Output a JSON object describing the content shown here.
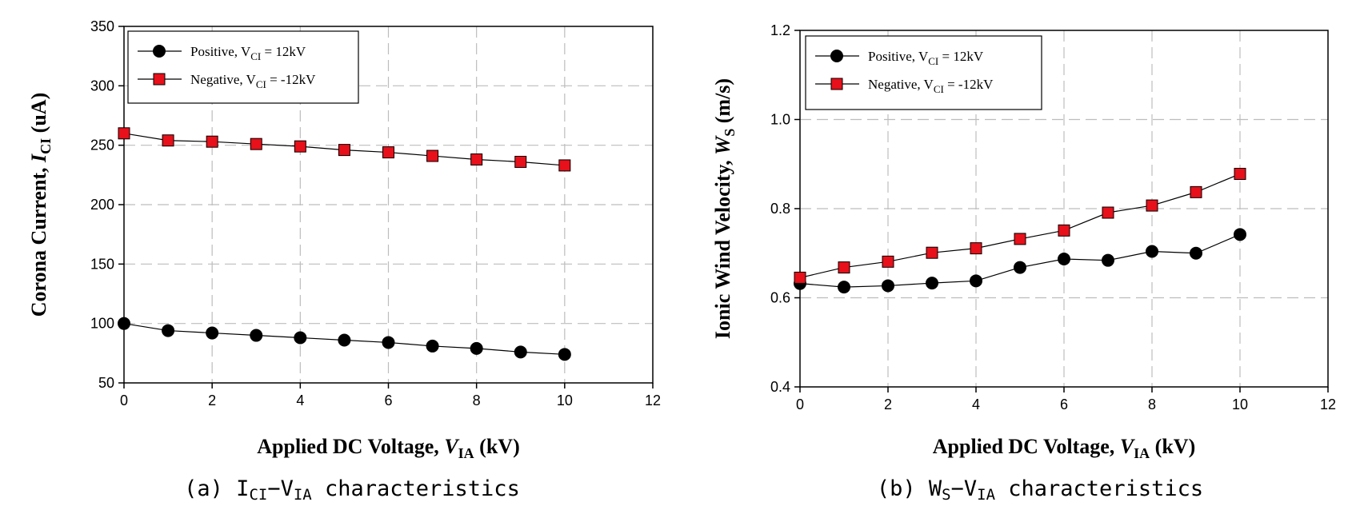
{
  "chart_data": [
    {
      "type": "line",
      "title": "",
      "xlabel": {
        "main": "Applied DC Voltage, ",
        "var": "V",
        "sub": "IA",
        "unit": " (kV)"
      },
      "ylabel": {
        "main": "Corona Current, ",
        "var": "I",
        "sub": "CI",
        "unit": " (uA)"
      },
      "xlim": [
        0,
        12
      ],
      "ylim": [
        50,
        350
      ],
      "xticks": [
        0,
        2,
        4,
        6,
        8,
        10,
        12
      ],
      "yticks": [
        50,
        100,
        150,
        200,
        250,
        300,
        350
      ],
      "grid": true,
      "legend_position": "top-left",
      "x": [
        0,
        1,
        2,
        3,
        4,
        5,
        6,
        7,
        8,
        9,
        10
      ],
      "series": [
        {
          "legend": {
            "pre": "Positive, V",
            "sub": "CI",
            "post": " = 12kV"
          },
          "marker": "circle",
          "color": "#000000",
          "values": [
            100,
            94,
            92,
            90,
            88,
            86,
            84,
            81,
            79,
            76,
            74
          ]
        },
        {
          "legend": {
            "pre": "Negative, V",
            "sub": "CI",
            "post": " = -12kV"
          },
          "marker": "square",
          "color": "#e8101a",
          "values": [
            260,
            254,
            253,
            251,
            249,
            246,
            244,
            241,
            238,
            236,
            233
          ]
        }
      ],
      "caption": {
        "pre": "(a) I",
        "sub1": "CI",
        "mid": "−V",
        "sub2": "IA",
        "post": " characteristics"
      }
    },
    {
      "type": "line",
      "title": "",
      "xlabel": {
        "main": "Applied DC Voltage, ",
        "var": "V",
        "sub": "IA",
        "unit": " (kV)"
      },
      "ylabel": {
        "main": "Ionic Wind Velocity, ",
        "var": "W",
        "sub": "S",
        "unit": " (m/s)"
      },
      "xlim": [
        0,
        12
      ],
      "ylim": [
        0.4,
        1.2
      ],
      "xticks": [
        0,
        2,
        4,
        6,
        8,
        10,
        12
      ],
      "yticks": [
        0.4,
        0.6,
        0.8,
        1.0,
        1.2
      ],
      "grid": true,
      "legend_position": "top-left",
      "x": [
        0,
        1,
        2,
        3,
        4,
        5,
        6,
        7,
        8,
        9,
        10
      ],
      "series": [
        {
          "legend": {
            "pre": "Positive, V",
            "sub": "CI",
            "post": " = 12kV"
          },
          "marker": "circle",
          "color": "#000000",
          "values": [
            0.632,
            0.624,
            0.627,
            0.633,
            0.638,
            0.668,
            0.687,
            0.684,
            0.704,
            0.7,
            0.742
          ]
        },
        {
          "legend": {
            "pre": "Negative, V",
            "sub": "CI",
            "post": " = -12kV"
          },
          "marker": "square",
          "color": "#e8101a",
          "values": [
            0.645,
            0.668,
            0.681,
            0.701,
            0.711,
            0.732,
            0.751,
            0.791,
            0.807,
            0.837,
            0.878
          ]
        }
      ],
      "caption": {
        "pre": "(b) W",
        "sub1": "S",
        "mid": "−V",
        "sub2": "IA",
        "post": " characteristics"
      }
    }
  ]
}
